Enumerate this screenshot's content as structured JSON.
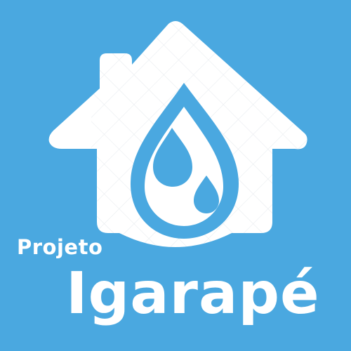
{
  "logo": {
    "prefix": "Projeto",
    "name": "Igarapé",
    "icon": "house-water-drop-icon"
  },
  "colors": {
    "background": "#4aa8e0",
    "foreground": "#ffffff",
    "pattern": "#e6eaee"
  }
}
